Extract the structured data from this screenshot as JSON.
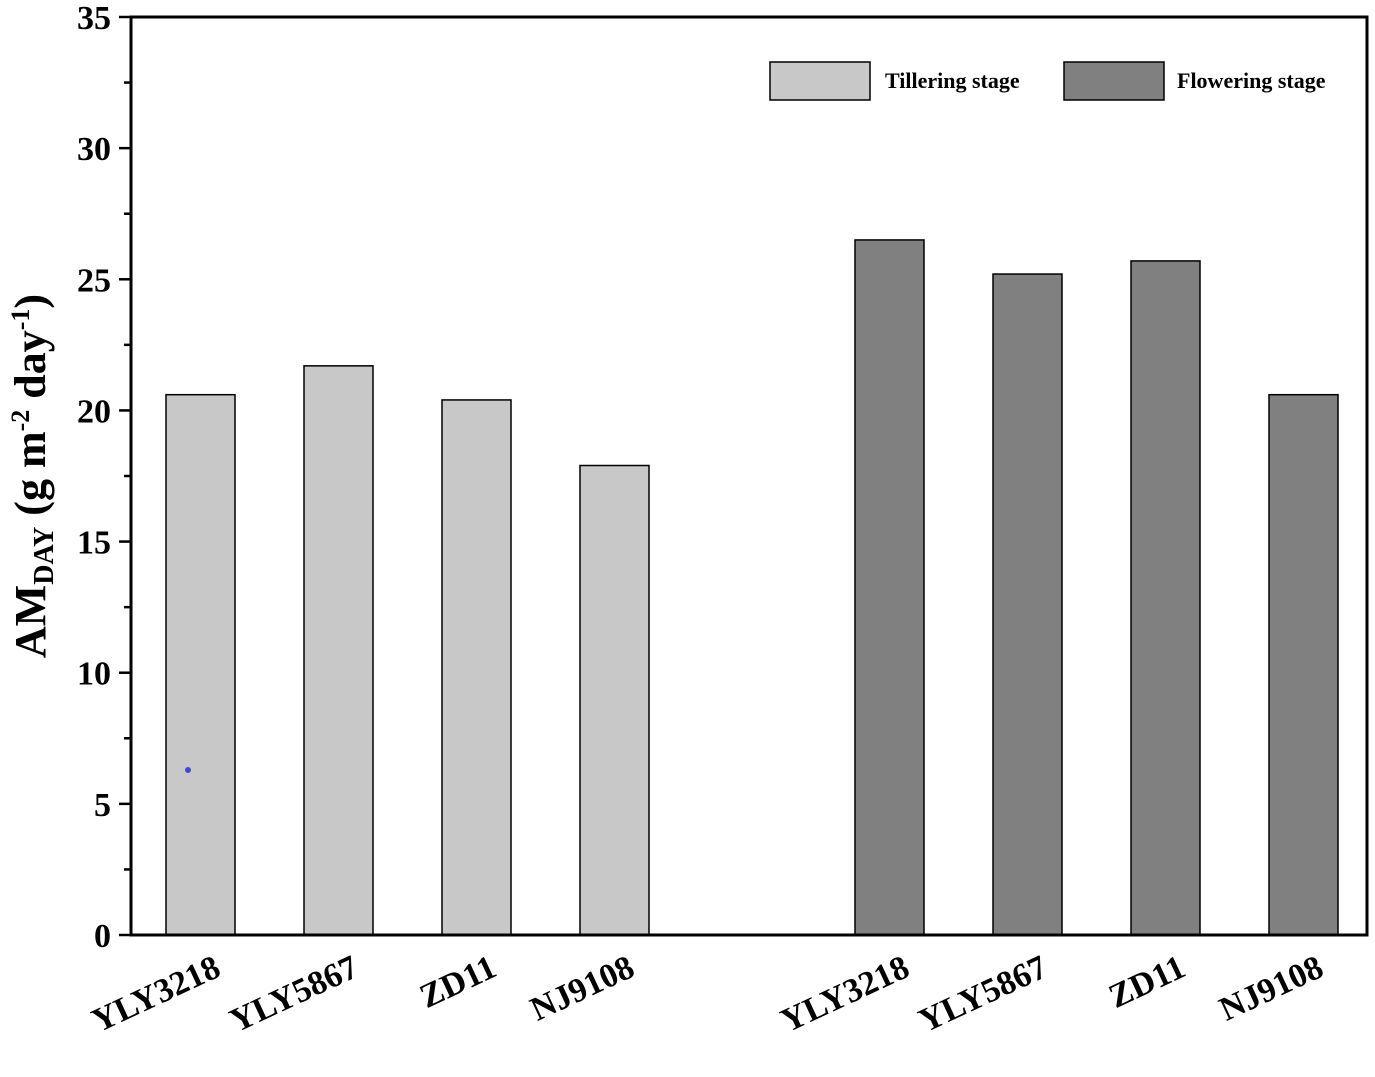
{
  "chart_data": {
    "type": "bar",
    "categories": [
      "YLY3218",
      "YLY5867",
      "ZD11",
      "NJ9108"
    ],
    "series": [
      {
        "name": "Tillering stage",
        "color": "#c8c8c8",
        "values": [
          20.6,
          21.7,
          20.4,
          17.9
        ]
      },
      {
        "name": "Flowering stage",
        "color": "#808080",
        "values": [
          26.5,
          25.2,
          25.7,
          20.6
        ]
      }
    ],
    "title": "",
    "xlabel": "",
    "ylabel": {
      "main": "AM",
      "sub": "DAY",
      "unit_open": " (g m",
      "sup1": "-2",
      "unit_mid": " day",
      "sup2": "-1",
      "unit_close": ")"
    },
    "ylim": [
      0,
      35
    ],
    "yticks": [
      "0",
      "5",
      "10",
      "15",
      "20",
      "25",
      "30",
      "35"
    ],
    "legend_position": "top-right",
    "grid": false
  }
}
